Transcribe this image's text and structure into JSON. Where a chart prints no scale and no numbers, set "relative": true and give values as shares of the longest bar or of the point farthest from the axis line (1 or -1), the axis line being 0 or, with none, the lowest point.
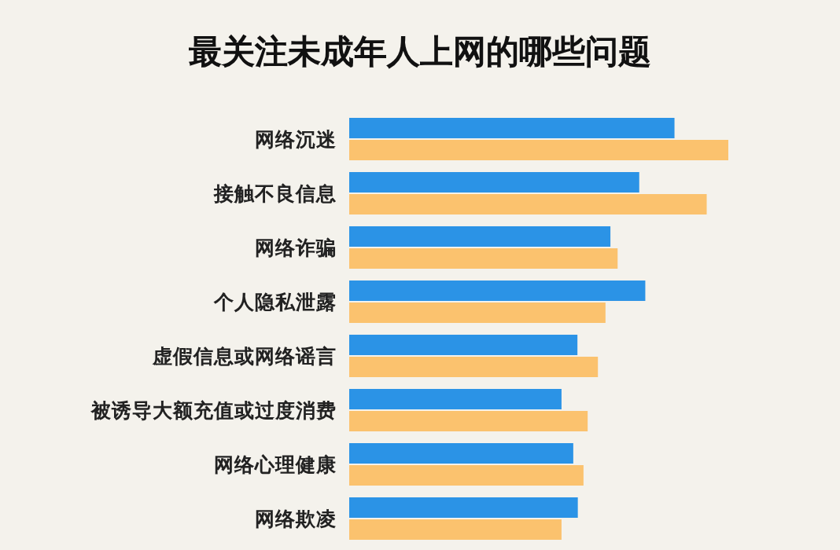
{
  "chart_data": {
    "type": "bar",
    "orientation": "horizontal",
    "relative": true,
    "title": "最关注未成年人上网的哪些问题",
    "categories": [
      "网络沉迷",
      "接触不良信息",
      "网络诈骗",
      "个人隐私泄露",
      "虚假信息或网络谣言",
      "被诱导大额充值或过度消费",
      "网络心理健康",
      "网络欺凌"
    ],
    "series": [
      {
        "color": "#2b93e6",
        "values": [
          0.858,
          0.765,
          0.689,
          0.781,
          0.602,
          0.56,
          0.591,
          0.603
        ]
      },
      {
        "color": "#fbc26e",
        "values": [
          1,
          0.943,
          0.708,
          0.676,
          0.656,
          0.629,
          0.618,
          0.56
        ]
      }
    ]
  }
}
